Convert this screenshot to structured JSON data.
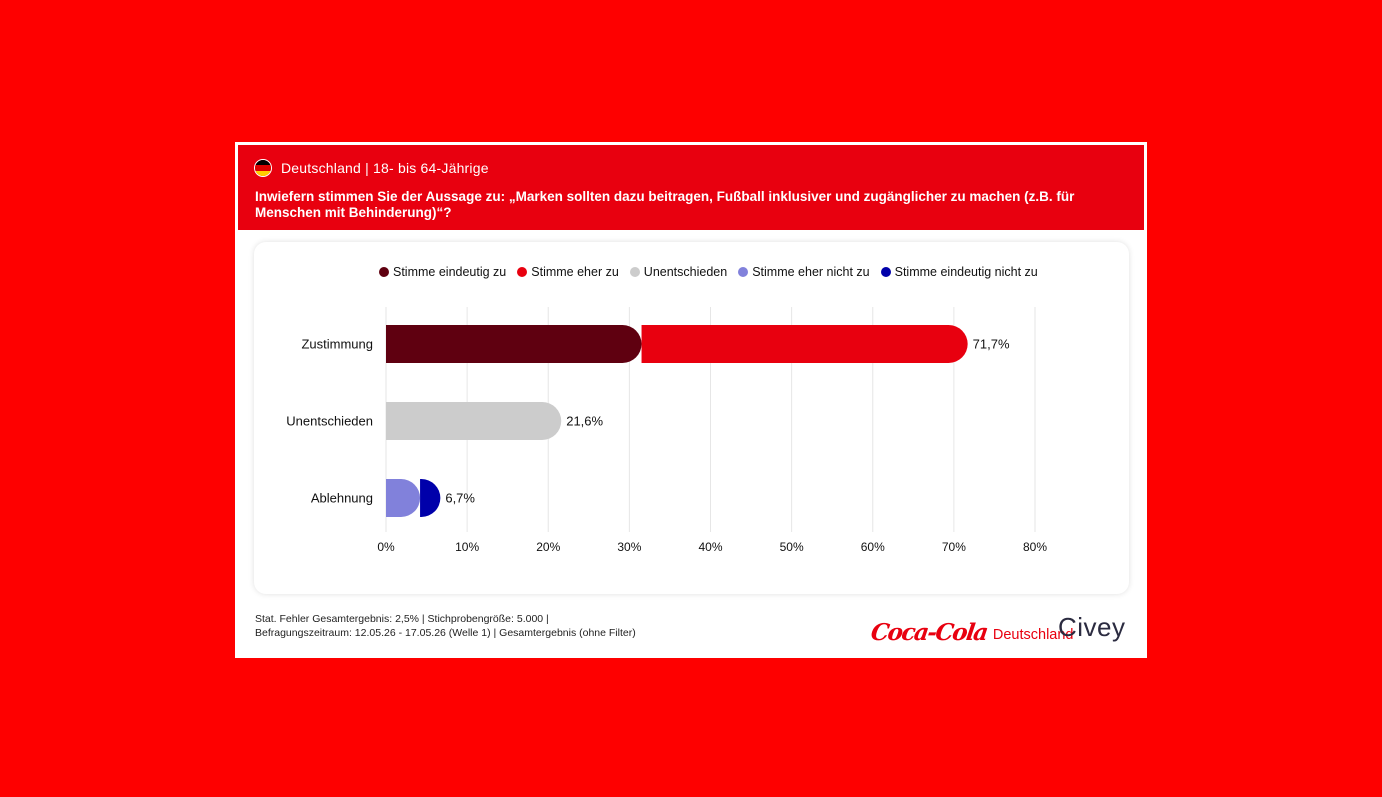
{
  "header": {
    "region": "Deutschland | 18- bis 64-Jährige",
    "question": "Inwiefern stimmen Sie der Aussage zu: „Marken sollten dazu beitragen, Fußball inklusiver und zugänglicher zu machen (z.B. für Menschen mit Behinderung)“?",
    "flag_colors": [
      "#000000",
      "#dd0000",
      "#ffce00"
    ]
  },
  "colors": {
    "background": "#fe0000",
    "header": "#e8000f",
    "eindeutig_zu": "#5f0010",
    "eher_zu": "#e8000f",
    "unentschieden": "#cccccc",
    "eher_nicht_zu": "#8181db",
    "eindeutig_nicht_zu": "#0000aa"
  },
  "chart_data": {
    "type": "bar",
    "orientation": "horizontal",
    "stacked": true,
    "categories": [
      "Zustimmung",
      "Unentschieden",
      "Ablehnung"
    ],
    "series": [
      {
        "name": "Stimme eindeutig zu",
        "color": "#5f0010",
        "values": [
          31.5,
          0,
          0
        ]
      },
      {
        "name": "Stimme eher zu",
        "color": "#e8000f",
        "values": [
          40.2,
          0,
          0
        ]
      },
      {
        "name": "Unentschieden",
        "color": "#cccccc",
        "values": [
          0,
          21.6,
          0
        ]
      },
      {
        "name": "Stimme eher nicht zu",
        "color": "#8181db",
        "values": [
          0,
          0,
          4.2
        ]
      },
      {
        "name": "Stimme eindeutig nicht zu",
        "color": "#0000aa",
        "values": [
          0,
          0,
          2.5
        ]
      }
    ],
    "totals": [
      71.7,
      21.6,
      6.7
    ],
    "total_labels": [
      "71,7%",
      "21,6%",
      "6,7%"
    ],
    "xlim": [
      0,
      80
    ],
    "xticks": [
      0,
      10,
      20,
      30,
      40,
      50,
      60,
      70,
      80
    ],
    "xtick_labels": [
      "0%",
      "10%",
      "20%",
      "30%",
      "40%",
      "50%",
      "60%",
      "70%",
      "80%"
    ],
    "grid": true,
    "legend_position": "top"
  },
  "footer": {
    "line1": "Stat. Fehler Gesamtergebnis: 2,5% | Stichprobengröße: 5.000 |",
    "line2": "Befragungszeitraum: 12.05.26 - 17.05.26 (Welle 1) | Gesamtergebnis (ohne Filter)"
  },
  "brand": {
    "coke_logo": "Coca-Cola",
    "coke_sub": "Deutschland",
    "civey": "Civey"
  }
}
